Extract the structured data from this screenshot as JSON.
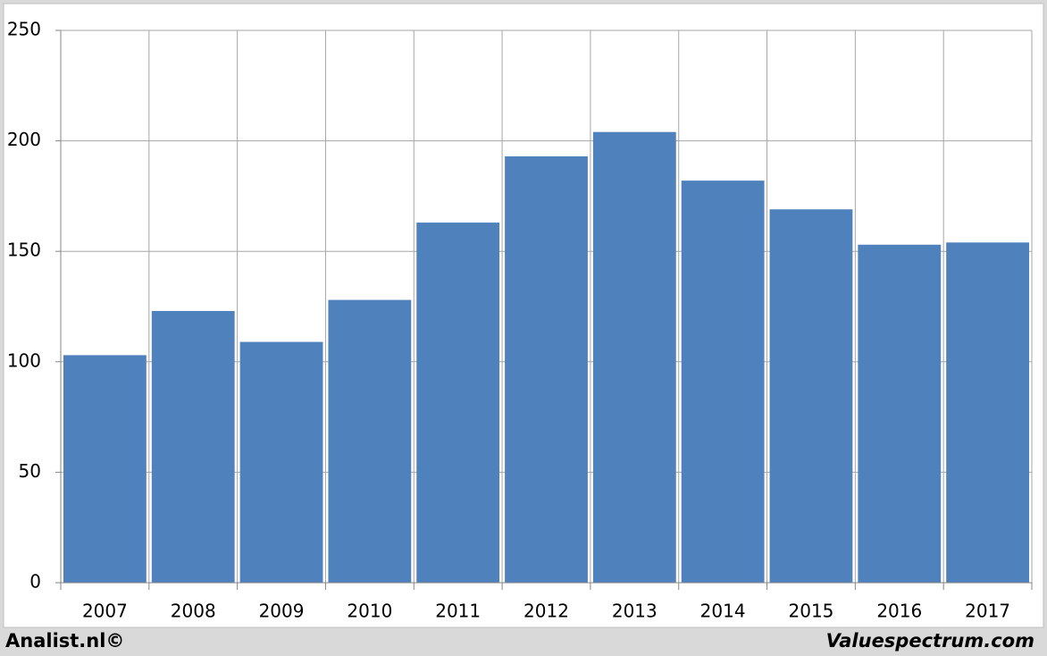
{
  "chart_data": {
    "type": "bar",
    "categories": [
      "2007",
      "2008",
      "2009",
      "2010",
      "2011",
      "2012",
      "2013",
      "2014",
      "2015",
      "2016",
      "2017"
    ],
    "values": [
      103,
      123,
      109,
      128,
      163,
      193,
      204,
      182,
      169,
      153,
      154
    ],
    "color": "#4f81bd",
    "ylim": [
      0,
      250
    ],
    "yticks": [
      0,
      50,
      100,
      150,
      200,
      250
    ],
    "grid": true,
    "footer_left": "Analist.nl©",
    "footer_right": "Valuespectrum.com"
  }
}
